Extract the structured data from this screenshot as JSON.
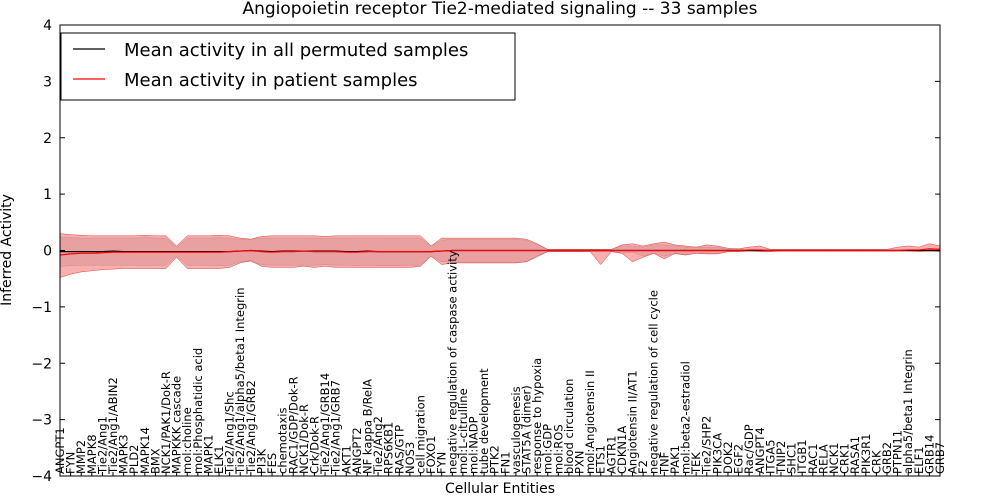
{
  "chart_data": {
    "type": "line",
    "title": "Angiopoietin receptor Tie2-mediated signaling -- 33 samples",
    "xlabel": "Cellular Entities",
    "ylabel": "Inferred Activity",
    "ylim": [
      -4,
      4
    ],
    "yticks": [
      "4",
      "3",
      "2",
      "1",
      "0",
      "−1",
      "−2",
      "−3",
      "−4"
    ],
    "ytick_values": [
      4,
      3,
      2,
      1,
      0,
      -1,
      -2,
      -3,
      -4
    ],
    "legend": {
      "placement": "top-left",
      "entries": [
        {
          "label": "Mean activity in all permuted samples",
          "color": "#000000"
        },
        {
          "label": "Mean activity in patient samples",
          "color": "#ff0000"
        }
      ]
    },
    "categories": [
      "ANGPT1",
      "FYN",
      "MMP2",
      "MAPK8",
      "Tie2/Ang1",
      "Tie2/Ang1/ABIN2",
      "MAPK3",
      "PLD2",
      "MAPK14",
      "BMX",
      "NCK1/PAK1/Dok-R",
      "MAPKKK cascade",
      "mol:choline",
      "mol:Phosphatidic acid",
      "MAPK1",
      "ELK1",
      "Tie2/Ang1/Shc",
      "Tie2/Ang1/alpha5/beta1 Integrin",
      "Tie2/Ang1/GRB2",
      "PI3K",
      "FES",
      "chemotaxis",
      "RAC1/GDP/Dok-R",
      "NCK1/Dok-R",
      "Crk/Dok-R",
      "Tie2/Ang1/GRB14",
      "Tie2/Ang1/GRB7",
      "AKT1",
      "ANGPT2",
      "NF kappa B/RelA",
      "Tie2/Ang2",
      "RPS6KB1",
      "RAS/GTP",
      "NOS3",
      "cell migration",
      "FOXO1",
      "FYN",
      "negative regulation of caspase activity",
      "mol:L-citrulline",
      "mol:NADP",
      "tube development",
      "PTK2",
      "FN1",
      "vasculogenesis",
      "STAT5A (dimer)",
      "response to hypoxia",
      "mol:GDP",
      "mol:ROS",
      "blood circulation",
      "PXN",
      "mol:Angiotensin II",
      "ETS1",
      "AGTR1",
      "CDKN1A",
      "Angiotensin II/AT1",
      "F2",
      "negative regulation of cell cycle",
      "TNF",
      "PAK1",
      "mol:beta2-estradiol",
      "TEK",
      "Tie2/SHP2",
      "PIK3CA",
      "DOK2",
      "EGF2",
      "Rac/GDP",
      "ANGPT4",
      "ITGA5",
      "TNIP2",
      "SHC1",
      "ITGB1",
      "RAC1",
      "RELA",
      "NCK1",
      "CRK1",
      "RASA1",
      "PIK3R1",
      "CRK",
      "GRB2",
      "PTPN11",
      "alpha5/beta1 Integrin",
      "ELF1",
      "GRB14",
      "GRB7"
    ],
    "series": [
      {
        "name": "Mean activity in all permuted samples",
        "color": "#000000",
        "values": [
          -0.02,
          -0.02,
          -0.02,
          -0.02,
          -0.02,
          -0.01,
          -0.02,
          -0.02,
          -0.02,
          -0.02,
          -0.02,
          -0.02,
          -0.02,
          -0.02,
          -0.02,
          -0.02,
          -0.02,
          -0.01,
          0.0,
          -0.01,
          -0.02,
          -0.01,
          -0.01,
          -0.01,
          -0.01,
          -0.01,
          -0.01,
          -0.02,
          -0.02,
          -0.01,
          -0.02,
          -0.02,
          -0.02,
          -0.02,
          -0.02,
          -0.02,
          -0.01,
          0.0,
          0.0,
          0.0,
          0.0,
          0.0,
          0.0,
          0.0,
          0.0,
          0.0,
          0.0,
          0.0,
          0.0,
          0.0,
          0.0,
          0.0,
          0.0,
          0.0,
          0.0,
          0.0,
          0.0,
          0.0,
          0.0,
          0.0,
          0.0,
          0.0,
          0.0,
          0.0,
          0.0,
          0.0,
          0.0,
          0.0,
          0.0,
          0.0,
          0.0,
          0.0,
          0.0,
          0.0,
          0.0,
          0.0,
          0.0,
          0.0,
          0.0,
          0.0,
          0.0,
          0.0,
          0.0,
          0.0
        ],
        "lower": [
          -0.28,
          -0.27,
          -0.26,
          -0.26,
          -0.26,
          -0.26,
          -0.26,
          -0.26,
          -0.27,
          -0.26,
          -0.26,
          -0.1,
          -0.26,
          -0.26,
          -0.26,
          -0.27,
          -0.26,
          -0.2,
          -0.2,
          -0.25,
          -0.26,
          -0.26,
          -0.26,
          -0.26,
          -0.26,
          -0.25,
          -0.26,
          -0.26,
          -0.27,
          -0.26,
          -0.27,
          -0.27,
          -0.27,
          -0.26,
          -0.26,
          -0.1,
          -0.2,
          -0.2,
          -0.22,
          -0.22,
          -0.22,
          -0.22,
          -0.22,
          -0.22,
          -0.2,
          -0.12,
          -0.02,
          -0.02,
          -0.02,
          -0.02,
          -0.02,
          -0.02,
          -0.02,
          -0.05,
          -0.03,
          -0.1,
          -0.05,
          -0.1,
          -0.06,
          -0.08,
          -0.05,
          -0.06,
          -0.06,
          -0.02,
          -0.02,
          -0.01,
          -0.01,
          -0.01,
          -0.01,
          -0.01,
          -0.01,
          -0.01,
          -0.01,
          -0.01,
          -0.01,
          -0.01,
          -0.01,
          -0.01,
          -0.01,
          -0.01,
          -0.01,
          -0.01,
          -0.01,
          -0.01
        ],
        "upper": [
          0.24,
          0.23,
          0.22,
          0.22,
          0.22,
          0.22,
          0.22,
          0.22,
          0.23,
          0.22,
          0.22,
          0.05,
          0.22,
          0.22,
          0.22,
          0.23,
          0.22,
          0.2,
          0.2,
          0.22,
          0.22,
          0.22,
          0.22,
          0.22,
          0.22,
          0.21,
          0.22,
          0.22,
          0.22,
          0.22,
          0.22,
          0.22,
          0.22,
          0.22,
          0.22,
          0.08,
          0.18,
          0.2,
          0.2,
          0.2,
          0.2,
          0.2,
          0.2,
          0.2,
          0.18,
          0.1,
          0.02,
          0.02,
          0.02,
          0.02,
          0.02,
          0.02,
          0.02,
          0.08,
          0.08,
          0.06,
          0.1,
          0.1,
          0.08,
          0.06,
          0.05,
          0.06,
          0.06,
          0.02,
          0.02,
          0.01,
          0.01,
          0.01,
          0.01,
          0.01,
          0.01,
          0.01,
          0.01,
          0.01,
          0.01,
          0.01,
          0.01,
          0.01,
          0.01,
          0.01,
          0.01,
          0.01,
          0.01,
          0.01
        ]
      },
      {
        "name": "Mean activity in patient samples",
        "color": "#ff0000",
        "values": [
          -0.08,
          -0.06,
          -0.05,
          -0.05,
          -0.04,
          -0.03,
          -0.03,
          -0.03,
          -0.03,
          -0.03,
          -0.03,
          -0.03,
          -0.03,
          -0.03,
          -0.03,
          -0.03,
          -0.02,
          -0.01,
          0.0,
          -0.02,
          -0.03,
          -0.02,
          -0.02,
          -0.01,
          -0.02,
          -0.02,
          -0.02,
          -0.03,
          -0.03,
          -0.02,
          -0.02,
          -0.02,
          -0.02,
          -0.02,
          -0.02,
          -0.02,
          -0.01,
          0.0,
          0.0,
          0.0,
          0.0,
          0.0,
          0.0,
          0.0,
          0.0,
          0.0,
          0.0,
          0.0,
          0.0,
          0.0,
          0.0,
          0.0,
          0.0,
          0.0,
          0.0,
          0.0,
          0.0,
          0.0,
          0.0,
          0.0,
          0.0,
          0.0,
          0.0,
          0.0,
          0.0,
          0.01,
          0.01,
          0.0,
          0.0,
          0.0,
          0.0,
          0.0,
          0.0,
          0.0,
          0.0,
          0.0,
          0.0,
          0.0,
          0.0,
          0.0,
          0.01,
          0.01,
          0.03,
          0.02
        ],
        "lower": [
          -0.48,
          -0.42,
          -0.38,
          -0.36,
          -0.34,
          -0.33,
          -0.32,
          -0.32,
          -0.32,
          -0.32,
          -0.32,
          -0.12,
          -0.32,
          -0.32,
          -0.32,
          -0.32,
          -0.3,
          -0.22,
          -0.18,
          -0.28,
          -0.3,
          -0.3,
          -0.3,
          -0.28,
          -0.3,
          -0.28,
          -0.3,
          -0.3,
          -0.3,
          -0.3,
          -0.3,
          -0.3,
          -0.3,
          -0.3,
          -0.28,
          -0.1,
          -0.25,
          -0.22,
          -0.22,
          -0.22,
          -0.22,
          -0.22,
          -0.22,
          -0.22,
          -0.2,
          -0.1,
          -0.02,
          -0.02,
          -0.02,
          -0.02,
          -0.02,
          -0.25,
          -0.02,
          -0.05,
          -0.2,
          -0.12,
          -0.05,
          -0.15,
          -0.05,
          -0.08,
          -0.05,
          -0.06,
          -0.06,
          -0.02,
          -0.02,
          -0.01,
          -0.02,
          -0.02,
          -0.01,
          -0.01,
          -0.01,
          -0.01,
          -0.01,
          -0.01,
          -0.01,
          -0.01,
          -0.01,
          -0.01,
          -0.01,
          -0.01,
          -0.01,
          -0.02,
          -0.01,
          -0.02
        ],
        "upper": [
          0.3,
          0.28,
          0.27,
          0.26,
          0.26,
          0.26,
          0.26,
          0.26,
          0.27,
          0.26,
          0.26,
          0.08,
          0.26,
          0.26,
          0.26,
          0.27,
          0.26,
          0.22,
          0.2,
          0.25,
          0.26,
          0.26,
          0.26,
          0.26,
          0.26,
          0.25,
          0.26,
          0.26,
          0.26,
          0.26,
          0.26,
          0.26,
          0.26,
          0.26,
          0.26,
          0.08,
          0.22,
          0.22,
          0.22,
          0.22,
          0.22,
          0.22,
          0.22,
          0.22,
          0.2,
          0.12,
          0.02,
          0.02,
          0.02,
          0.02,
          0.02,
          0.02,
          0.02,
          0.1,
          0.12,
          0.08,
          0.12,
          0.15,
          0.1,
          0.08,
          0.06,
          0.1,
          0.08,
          0.04,
          0.03,
          0.06,
          0.08,
          0.02,
          0.02,
          0.02,
          0.02,
          0.02,
          0.02,
          0.02,
          0.02,
          0.02,
          0.02,
          0.02,
          0.02,
          0.06,
          0.08,
          0.06,
          0.12,
          0.08
        ]
      }
    ]
  }
}
